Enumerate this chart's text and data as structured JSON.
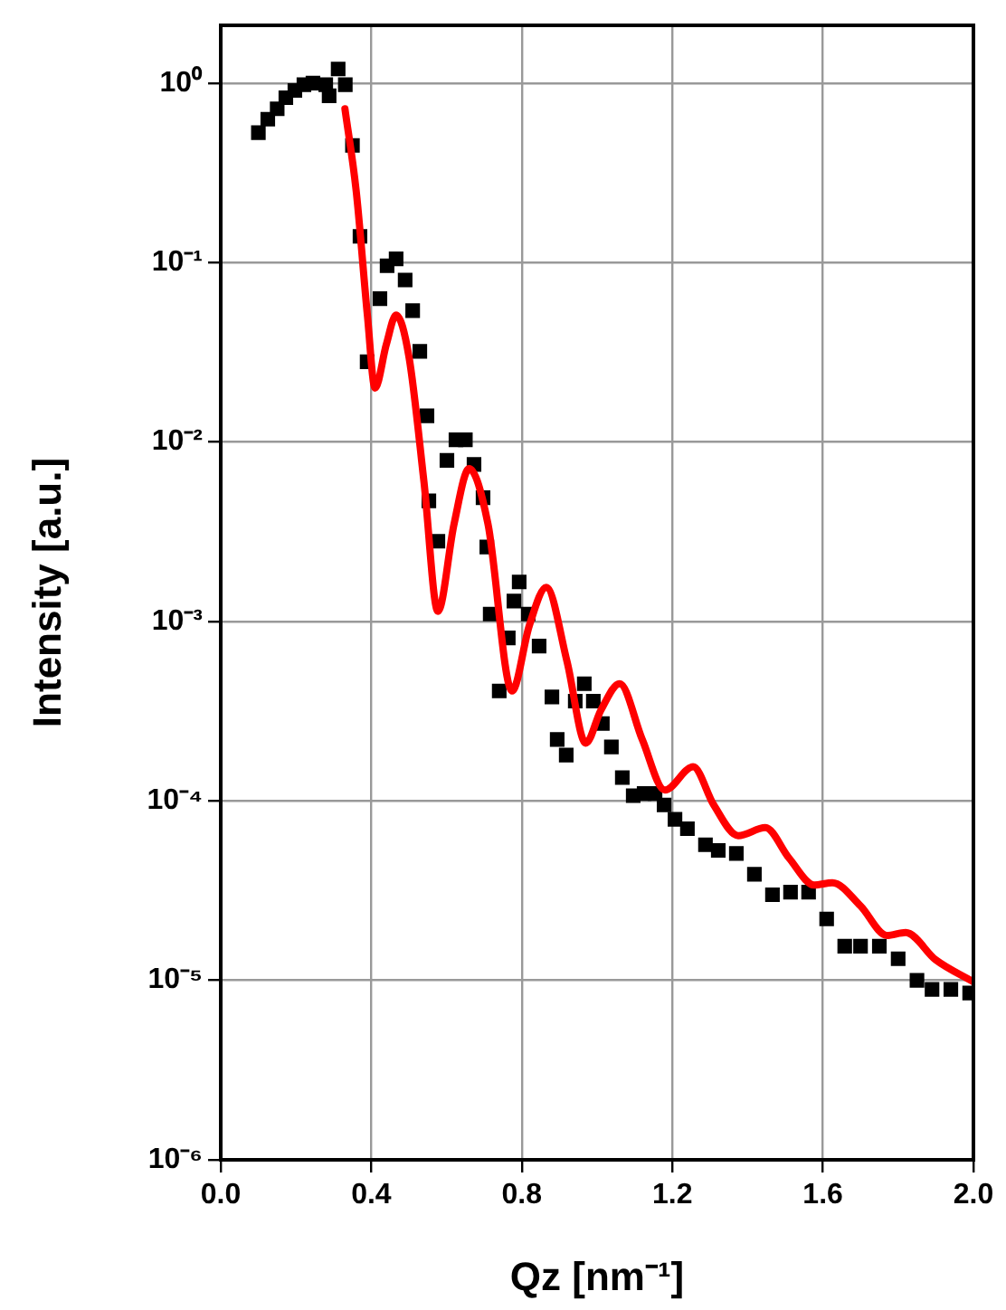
{
  "chart_data": {
    "type": "scatter",
    "xlabel": "Qz [nm⁻¹]",
    "ylabel": "Intensity [a.u.]",
    "log": "y",
    "grid": true,
    "legend": false,
    "marker": "square",
    "xlim": [
      0,
      2
    ],
    "xticks": [
      {
        "value": 0,
        "label": "0.0"
      },
      0.4,
      0.8,
      1.2,
      1.6,
      {
        "value": 2,
        "label": "2.0"
      }
    ],
    "ylim": [
      1e-06,
      2.1
    ],
    "yticks": [
      {
        "value": 1e-06,
        "label": "10⁻⁶"
      },
      {
        "value": 1e-05,
        "label": "10⁻⁵"
      },
      {
        "value": 0.0001,
        "label": "10⁻⁴"
      },
      {
        "value": 0.001,
        "label": "10⁻³"
      },
      {
        "value": 0.01,
        "label": "10⁻²"
      },
      {
        "value": 0.1,
        "label": "10⁻¹"
      },
      {
        "value": 1,
        "label": "10⁰"
      }
    ],
    "series": [
      {
        "color": "#000000",
        "x": [
          0.1,
          0.125,
          0.15,
          0.173,
          0.197,
          0.221,
          0.245,
          0.279,
          0.288,
          0.312,
          0.331,
          0.35,
          0.37,
          0.389,
          0.423,
          0.442,
          0.466,
          0.49,
          0.51,
          0.529,
          0.548,
          0.553,
          0.577,
          0.601,
          0.625,
          0.65,
          0.673,
          0.697,
          0.707,
          0.716,
          0.74,
          0.764,
          0.779,
          0.793,
          0.817,
          0.846,
          0.88,
          0.894,
          0.918,
          0.942,
          0.966,
          0.99,
          1.014,
          1.038,
          1.067,
          1.096,
          1.125,
          1.154,
          1.178,
          1.207,
          1.24,
          1.288,
          1.322,
          1.37,
          1.418,
          1.466,
          1.514,
          1.562,
          1.61,
          1.658,
          1.7,
          1.75,
          1.8,
          1.85,
          1.89,
          1.94,
          1.99
        ],
        "values": [
          0.53,
          0.63,
          0.72,
          0.83,
          0.91,
          0.98,
          1.0,
          0.98,
          0.85,
          1.2,
          0.98,
          0.45,
          0.14,
          0.028,
          0.063,
          0.096,
          0.105,
          0.08,
          0.054,
          0.032,
          0.014,
          0.0047,
          0.0028,
          0.0079,
          0.0103,
          0.0103,
          0.0075,
          0.0049,
          0.0026,
          0.0011,
          0.00041,
          0.00081,
          0.0013,
          0.00166,
          0.0011,
          0.00073,
          0.00038,
          0.00022,
          0.00018,
          0.00036,
          0.00045,
          0.00036,
          0.00027,
          0.0002,
          0.000135,
          0.000107,
          0.00011,
          0.00011,
          9.5e-05,
          7.9e-05,
          7e-05,
          5.7e-05,
          5.3e-05,
          5.1e-05,
          3.9e-05,
          3e-05,
          3.1e-05,
          3.1e-05,
          2.2e-05,
          1.55e-05,
          1.55e-05,
          1.55e-05,
          1.32e-05,
          1e-05,
          8.9e-06,
          8.9e-06,
          8.5e-06
        ]
      },
      {
        "type": "line",
        "marker": "none",
        "color": "#ff0000",
        "x": [
          0.33,
          0.36,
          0.39,
          0.41,
          0.44,
          0.466,
          0.5,
          0.54,
          0.577,
          0.62,
          0.66,
          0.71,
          0.774,
          0.82,
          0.865,
          0.92,
          0.97,
          1.01,
          1.06,
          1.12,
          1.18,
          1.255,
          1.31,
          1.375,
          1.447,
          1.51,
          1.577,
          1.625,
          1.7,
          1.77,
          1.82,
          1.9,
          2.0
        ],
        "values": [
          0.72,
          0.25,
          0.05,
          0.02,
          0.035,
          0.051,
          0.03,
          0.006,
          0.00114,
          0.0035,
          0.0071,
          0.0035,
          0.00041,
          0.00095,
          0.00155,
          0.0006,
          0.00021,
          0.00032,
          0.00045,
          0.00022,
          0.000115,
          0.000155,
          9.5e-05,
          6.4e-05,
          7.1e-05,
          4.8e-05,
          3.4e-05,
          3.5e-05,
          2.6e-05,
          1.78e-05,
          1.85e-05,
          1.3e-05,
          9.8e-06
        ]
      }
    ]
  }
}
